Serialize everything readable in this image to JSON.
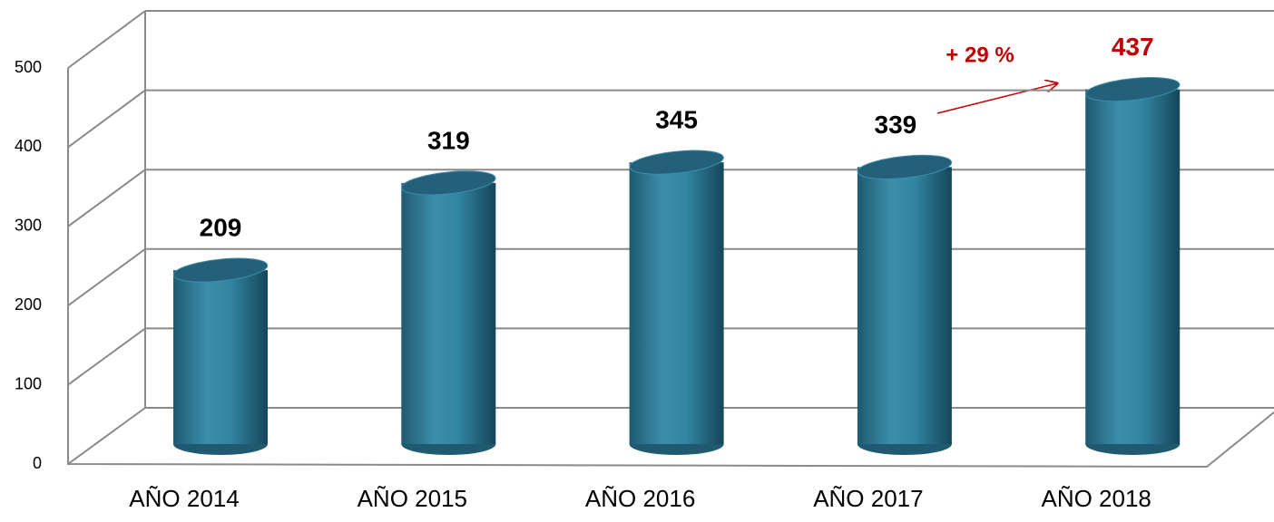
{
  "chart_data": {
    "type": "bar",
    "categories": [
      "AÑO 2014",
      "AÑO 2015",
      "AÑO 2016",
      "AÑO 2017",
      "AÑO 2018"
    ],
    "values": [
      209,
      319,
      345,
      339,
      437
    ],
    "color": "#2e7a96",
    "ylim": [
      0,
      500
    ],
    "yticks": [
      0,
      100,
      200,
      300,
      400,
      500
    ],
    "grid": true,
    "annotations": [
      "+ 29 %"
    ]
  }
}
